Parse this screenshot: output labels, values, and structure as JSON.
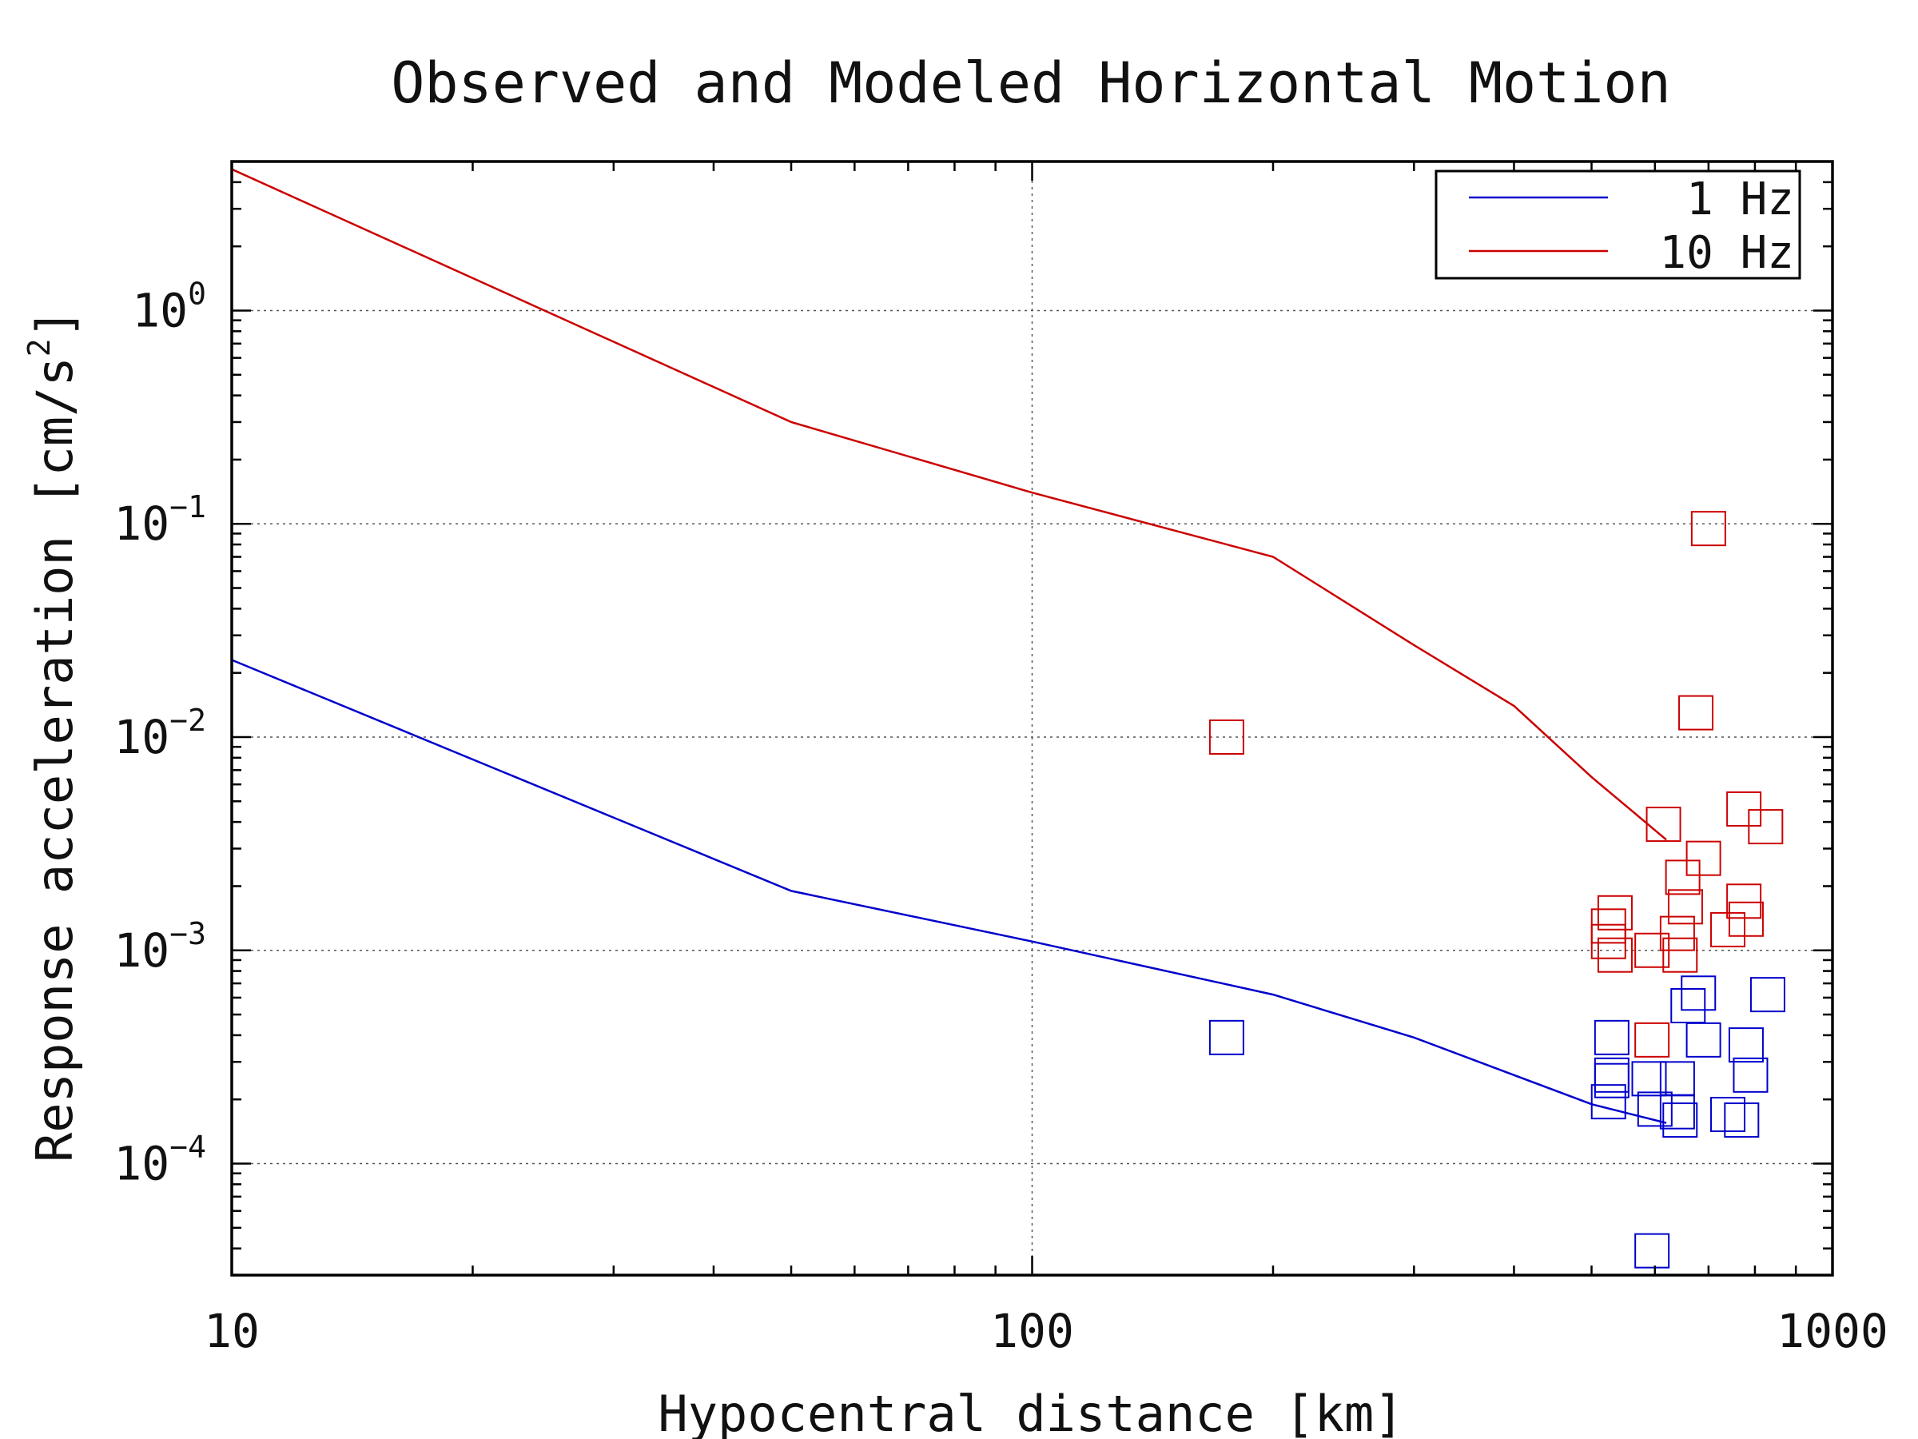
{
  "chart_data": {
    "type": "scatter",
    "title": "Observed and Modeled Horizontal Motion",
    "xlabel": "Hypocentral distance [km]",
    "ylabel": "Response acceleration [cm/s^2]",
    "ylabel_parts": {
      "text": "Response acceleration [cm/s",
      "sup": "2",
      "close": "]"
    },
    "xscale": "log",
    "yscale": "log",
    "xlim": [
      10,
      1000
    ],
    "ylim": [
      3e-05,
      5
    ],
    "x_ticks": [
      {
        "value": 10,
        "label": "10"
      },
      {
        "value": 100,
        "label": "100"
      },
      {
        "value": 1000,
        "label": "1000"
      }
    ],
    "y_ticks": [
      {
        "value": 1,
        "base": "10",
        "exp": "0"
      },
      {
        "value": 0.1,
        "base": "10",
        "exp": "−1"
      },
      {
        "value": 0.01,
        "base": "10",
        "exp": "−2"
      },
      {
        "value": 0.001,
        "base": "10",
        "exp": "−3"
      },
      {
        "value": 0.0001,
        "base": "10",
        "exp": "−4"
      }
    ],
    "grid": true,
    "legend_position": "top-right",
    "series": [
      {
        "name": "1 Hz",
        "color": "#0000cc",
        "model": [
          [
            10,
            0.023
          ],
          [
            50,
            0.0019
          ],
          [
            100,
            0.0011
          ],
          [
            200,
            0.00062
          ],
          [
            300,
            0.00039
          ],
          [
            400,
            0.00026
          ],
          [
            500,
            0.00019
          ],
          [
            620,
            0.000155
          ]
        ],
        "observed": [
          [
            175,
            0.00039
          ],
          [
            595,
            3.9e-05
          ],
          [
            530,
            0.00039
          ],
          [
            530,
            0.00026
          ],
          [
            530,
            0.000245
          ],
          [
            525,
            0.000195
          ],
          [
            590,
            0.00025
          ],
          [
            600,
            0.00018
          ],
          [
            640,
            0.00025
          ],
          [
            640,
            0.000175
          ],
          [
            645,
            0.00016
          ],
          [
            660,
            0.00055
          ],
          [
            680,
            0.00063
          ],
          [
            690,
            0.00038
          ],
          [
            780,
            0.00036
          ],
          [
            790,
            0.00026
          ],
          [
            830,
            0.00062
          ],
          [
            740,
            0.00017
          ],
          [
            770,
            0.00016
          ]
        ]
      },
      {
        "name": "10 Hz",
        "color": "#cc0000",
        "model": [
          [
            10,
            4.6
          ],
          [
            50,
            0.3
          ],
          [
            100,
            0.14
          ],
          [
            200,
            0.07
          ],
          [
            300,
            0.027
          ],
          [
            400,
            0.014
          ],
          [
            500,
            0.0065
          ],
          [
            620,
            0.0033
          ]
        ],
        "observed": [
          [
            175,
            0.01
          ],
          [
            700,
            0.095
          ],
          [
            675,
            0.013
          ],
          [
            615,
            0.0039
          ],
          [
            650,
            0.0022
          ],
          [
            690,
            0.0027
          ],
          [
            775,
            0.0046
          ],
          [
            825,
            0.0038
          ],
          [
            535,
            0.0015
          ],
          [
            525,
            0.0013
          ],
          [
            525,
            0.0011
          ],
          [
            535,
            0.00095
          ],
          [
            595,
            0.001
          ],
          [
            640,
            0.0012
          ],
          [
            645,
            0.00095
          ],
          [
            655,
            0.0016
          ],
          [
            740,
            0.00125
          ],
          [
            775,
            0.0017
          ],
          [
            780,
            0.0014
          ],
          [
            595,
            0.00038
          ]
        ]
      }
    ]
  }
}
